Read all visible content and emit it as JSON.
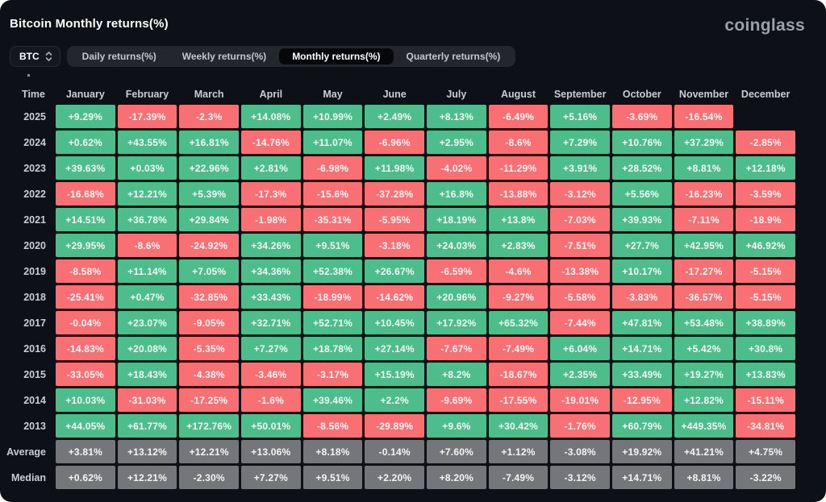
{
  "header": {
    "title": "Bitcoin Monthly returns(%)",
    "logo": "coinglass"
  },
  "controls": {
    "coin_selector": {
      "value": "BTC",
      "icon": "unfold-caret-icon"
    },
    "tabs": [
      {
        "name": "daily",
        "label": "Daily returns(%)",
        "active": false
      },
      {
        "name": "weekly",
        "label": "Weekly returns(%)",
        "active": false
      },
      {
        "name": "monthly",
        "label": "Monthly returns(%)",
        "active": true
      },
      {
        "name": "quarterly",
        "label": "Quarterly returns(%)",
        "active": false
      }
    ]
  },
  "colors": {
    "page_bg": "#0d1016",
    "positive": "#4dbe8b",
    "negative": "#f87073",
    "neutral": "#75767a",
    "active_tab_bg": "#06070b"
  },
  "table": {
    "time_header": "Time",
    "month_headers": [
      "January",
      "February",
      "March",
      "April",
      "May",
      "June",
      "July",
      "August",
      "September",
      "October",
      "November",
      "December"
    ],
    "rows": [
      {
        "label": "2025",
        "style": "signed",
        "cells": [
          "+9.29%",
          "-17.39%",
          "-2.3%",
          "+14.08%",
          "+10.99%",
          "+2.49%",
          "+8.13%",
          "-6.49%",
          "+5.16%",
          "-3.69%",
          "-16.54%",
          null
        ]
      },
      {
        "label": "2024",
        "style": "signed",
        "cells": [
          "+0.62%",
          "+43.55%",
          "+16.81%",
          "-14.76%",
          "+11.07%",
          "-6.96%",
          "+2.95%",
          "-8.6%",
          "+7.29%",
          "+10.76%",
          "+37.29%",
          "-2.85%"
        ]
      },
      {
        "label": "2023",
        "style": "signed",
        "cells": [
          "+39.63%",
          "+0.03%",
          "+22.96%",
          "+2.81%",
          "-6.98%",
          "+11.98%",
          "-4.02%",
          "-11.29%",
          "+3.91%",
          "+28.52%",
          "+8.81%",
          "+12.18%"
        ]
      },
      {
        "label": "2022",
        "style": "signed",
        "cells": [
          "-16.68%",
          "+12.21%",
          "+5.39%",
          "-17.3%",
          "-15.6%",
          "-37.28%",
          "+16.8%",
          "-13.88%",
          "-3.12%",
          "+5.56%",
          "-16.23%",
          "-3.59%"
        ]
      },
      {
        "label": "2021",
        "style": "signed",
        "cells": [
          "+14.51%",
          "+36.78%",
          "+29.84%",
          "-1.98%",
          "-35.31%",
          "-5.95%",
          "+18.19%",
          "+13.8%",
          "-7.03%",
          "+39.93%",
          "-7.11%",
          "-18.9%"
        ]
      },
      {
        "label": "2020",
        "style": "signed",
        "cells": [
          "+29.95%",
          "-8.6%",
          "-24.92%",
          "+34.26%",
          "+9.51%",
          "-3.18%",
          "+24.03%",
          "+2.83%",
          "-7.51%",
          "+27.7%",
          "+42.95%",
          "+46.92%"
        ]
      },
      {
        "label": "2019",
        "style": "signed",
        "cells": [
          "-8.58%",
          "+11.14%",
          "+7.05%",
          "+34.36%",
          "+52.38%",
          "+26.67%",
          "-6.59%",
          "-4.6%",
          "-13.38%",
          "+10.17%",
          "-17.27%",
          "-5.15%"
        ]
      },
      {
        "label": "2018",
        "style": "signed",
        "cells": [
          "-25.41%",
          "+0.47%",
          "-32.85%",
          "+33.43%",
          "-18.99%",
          "-14.62%",
          "+20.96%",
          "-9.27%",
          "-5.58%",
          "-3.83%",
          "-36.57%",
          "-5.15%"
        ]
      },
      {
        "label": "2017",
        "style": "signed",
        "cells": [
          "-0.04%",
          "+23.07%",
          "-9.05%",
          "+32.71%",
          "+52.71%",
          "+10.45%",
          "+17.92%",
          "+65.32%",
          "-7.44%",
          "+47.81%",
          "+53.48%",
          "+38.89%"
        ]
      },
      {
        "label": "2016",
        "style": "signed",
        "cells": [
          "-14.83%",
          "+20.08%",
          "-5.35%",
          "+7.27%",
          "+18.78%",
          "+27.14%",
          "-7.67%",
          "-7.49%",
          "+6.04%",
          "+14.71%",
          "+5.42%",
          "+30.8%"
        ]
      },
      {
        "label": "2015",
        "style": "signed",
        "cells": [
          "-33.05%",
          "+18.43%",
          "-4.38%",
          "-3.46%",
          "-3.17%",
          "+15.19%",
          "+8.2%",
          "-18.67%",
          "+2.35%",
          "+33.49%",
          "+19.27%",
          "+13.83%"
        ]
      },
      {
        "label": "2014",
        "style": "signed",
        "cells": [
          "+10.03%",
          "-31.03%",
          "-17.25%",
          "-1.6%",
          "+39.46%",
          "+2.2%",
          "-9.69%",
          "-17.55%",
          "-19.01%",
          "-12.95%",
          "+12.82%",
          "-15.11%"
        ]
      },
      {
        "label": "2013",
        "style": "signed",
        "cells": [
          "+44.05%",
          "+61.77%",
          "+172.76%",
          "+50.01%",
          "-8.56%",
          "-29.89%",
          "+9.6%",
          "+30.42%",
          "-1.76%",
          "+60.79%",
          "+449.35%",
          "-34.81%"
        ]
      },
      {
        "label": "Average",
        "style": "neutral",
        "cells": [
          "+3.81%",
          "+13.12%",
          "+12.21%",
          "+13.06%",
          "+8.18%",
          "-0.14%",
          "+7.60%",
          "+1.12%",
          "-3.08%",
          "+19.92%",
          "+41.21%",
          "+4.75%"
        ]
      },
      {
        "label": "Median",
        "style": "neutral",
        "cells": [
          "+0.62%",
          "+12.21%",
          "-2.30%",
          "+7.27%",
          "+9.51%",
          "+2.20%",
          "+8.20%",
          "-7.49%",
          "-3.12%",
          "+14.71%",
          "+8.81%",
          "-3.22%"
        ]
      }
    ]
  }
}
